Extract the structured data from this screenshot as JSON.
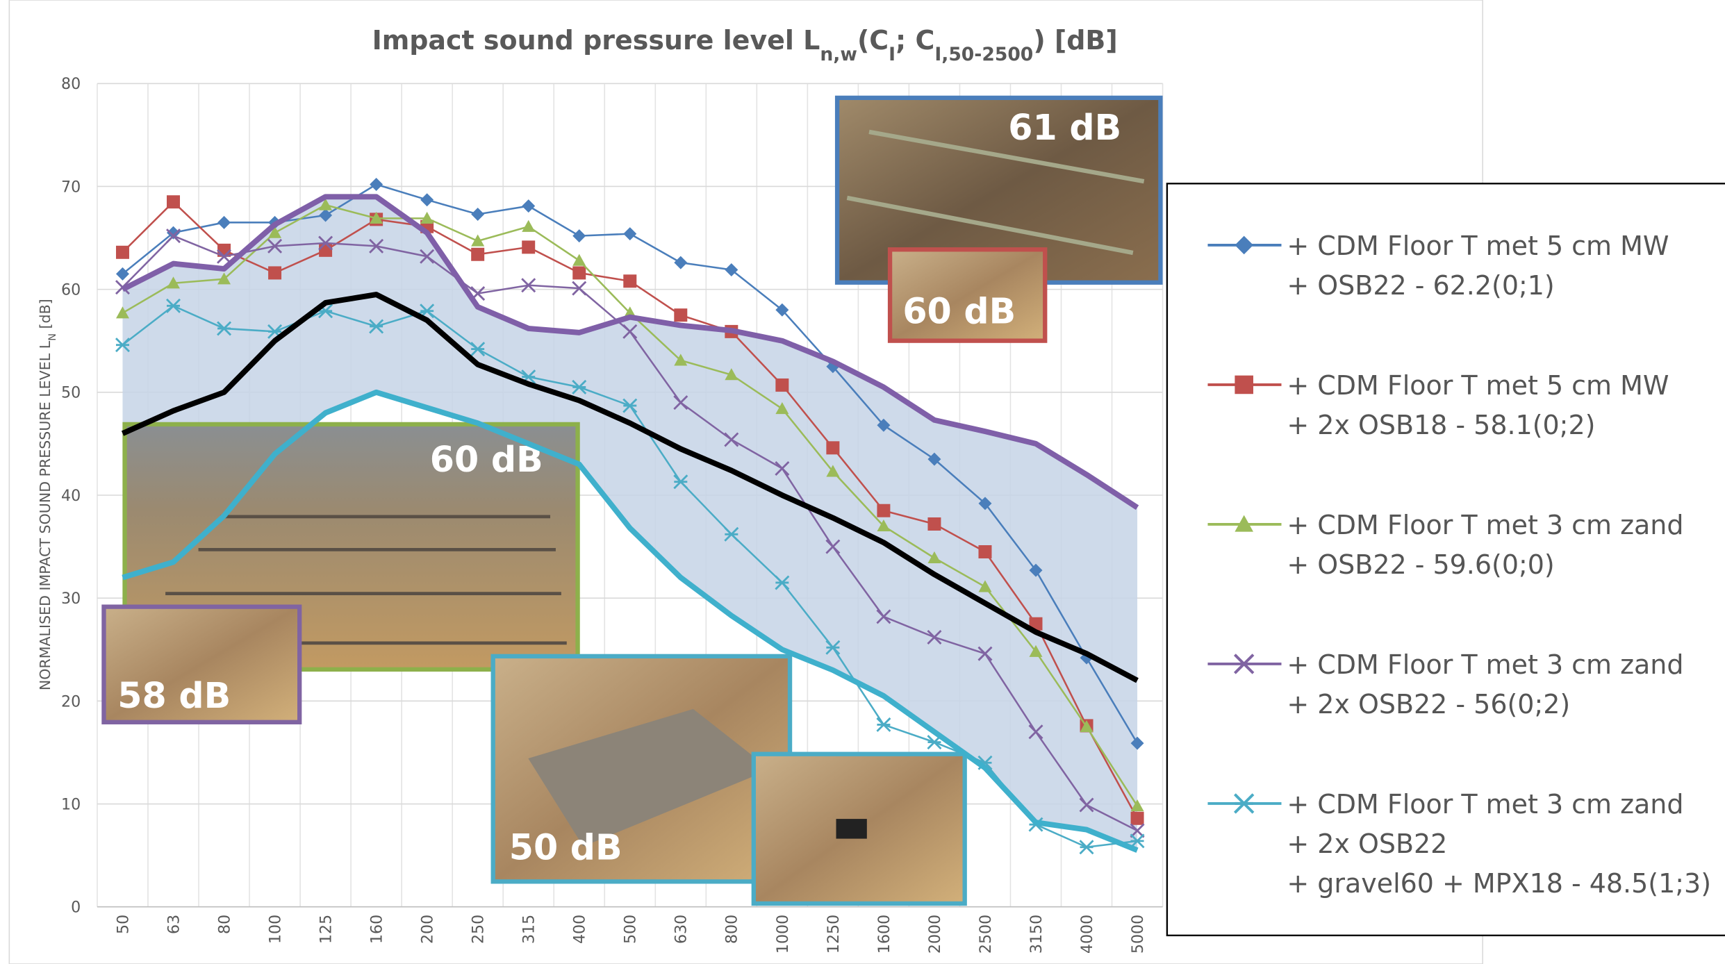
{
  "chart_data": {
    "type": "line",
    "title_parts": [
      "Impact sound pressure level L",
      "n,w",
      "(C",
      "I",
      "; C",
      "I,50-2500",
      ") [dB]"
    ],
    "y_label_parts": [
      "NORMALISED IMPACT SOUND PRESSURE LEVEL L",
      "N",
      " [dB]"
    ],
    "categories": [
      "50",
      "63",
      "80",
      "100",
      "125",
      "160",
      "200",
      "250",
      "315",
      "400",
      "500",
      "630",
      "800",
      "1000",
      "1250",
      "1600",
      "2000",
      "2500",
      "3150",
      "4000",
      "5000"
    ],
    "ylim": [
      0,
      80
    ],
    "yticks": [
      0,
      10,
      20,
      30,
      40,
      50,
      60,
      70,
      80
    ],
    "grid": true,
    "series": [
      {
        "name": [
          "+ CDM Floor T met 5 cm MW",
          "+ OSB22 - 62.2(0;1)"
        ],
        "color": "#4a7ebb",
        "marker": "diamond",
        "values": [
          61.5,
          65.5,
          66.5,
          66.5,
          67.2,
          70.2,
          68.7,
          67.3,
          68.1,
          65.2,
          65.4,
          62.6,
          61.9,
          58,
          52.5,
          46.8,
          43.5,
          39.2,
          32.7,
          24.2,
          15.9
        ]
      },
      {
        "name": [
          "+ CDM Floor T met 5 cm MW",
          "+ 2x OSB18 - 58.1(0;2)"
        ],
        "color": "#c0504d",
        "marker": "square",
        "values": [
          63.6,
          68.5,
          63.8,
          61.6,
          63.8,
          66.8,
          66.1,
          63.4,
          64.1,
          61.6,
          60.8,
          57.5,
          55.9,
          50.7,
          44.6,
          38.5,
          37.2,
          34.5,
          27.5,
          17.6,
          8.6
        ]
      },
      {
        "name": [
          "+ CDM Floor T met 3 cm zand",
          "+ OSB22 - 59.6(0;0)"
        ],
        "color": "#9bbb59",
        "marker": "triangle",
        "values": [
          57.7,
          60.6,
          61,
          65.5,
          68.2,
          66.9,
          66.9,
          64.7,
          66.1,
          62.8,
          57.7,
          53.1,
          51.7,
          48.4,
          42.3,
          37,
          33.9,
          31.1,
          24.8,
          17.5,
          9.8
        ]
      },
      {
        "name": [
          "+ CDM Floor T met 3 cm zand",
          "+ 2x OSB22 - 56(0;2)"
        ],
        "color": "#8064a2",
        "marker": "x",
        "values": [
          60.2,
          65.2,
          63.2,
          64.2,
          64.5,
          64.2,
          63.2,
          59.6,
          60.4,
          60.1,
          55.9,
          49,
          45.4,
          42.6,
          35,
          28.2,
          26.2,
          24.6,
          17,
          9.9,
          7.4
        ]
      },
      {
        "name": [
          "+ CDM Floor T met 3 cm zand",
          "+ 2x OSB22",
          "+ gravel60 + MPX18 - 48.5(1;3)"
        ],
        "color": "#4bacc6",
        "marker": "star",
        "values": [
          54.6,
          58.4,
          56.2,
          55.9,
          57.9,
          56.4,
          57.9,
          54.2,
          51.5,
          50.5,
          48.7,
          41.3,
          36.2,
          31.5,
          25.2,
          17.7,
          16,
          14,
          8,
          5.8,
          6.4
        ]
      }
    ],
    "band": {
      "fill": "#c5d3e6",
      "upper": {
        "color": "#7f5fa8",
        "values": [
          60,
          62.5,
          62,
          66.3,
          69,
          69,
          65.5,
          58.3,
          56.2,
          55.8,
          57.3,
          56.5,
          56,
          55,
          53,
          50.5,
          47.3,
          46.2,
          45,
          42,
          38.8
        ]
      },
      "lower": {
        "color": "#3fb0cc",
        "values": [
          32,
          33.5,
          38,
          44,
          48,
          50,
          48.5,
          47,
          45,
          43,
          36.8,
          32,
          28.3,
          25,
          23,
          20.5,
          17,
          13.5,
          8.2,
          7.5,
          5.5
        ]
      }
    },
    "mean_line": {
      "color": "#000000",
      "values": [
        46,
        48.2,
        50,
        55,
        58.7,
        59.5,
        57,
        52.7,
        50.8,
        49.2,
        47,
        44.5,
        42.4,
        40,
        37.8,
        35.4,
        32.3,
        29.5,
        26.7,
        24.6,
        22
      ]
    },
    "photos": [
      {
        "label": "61 dB"
      },
      {
        "label": "60 dB"
      },
      {
        "label": "60 dB"
      },
      {
        "label": "58 dB"
      },
      {
        "label": "50 dB"
      }
    ]
  }
}
